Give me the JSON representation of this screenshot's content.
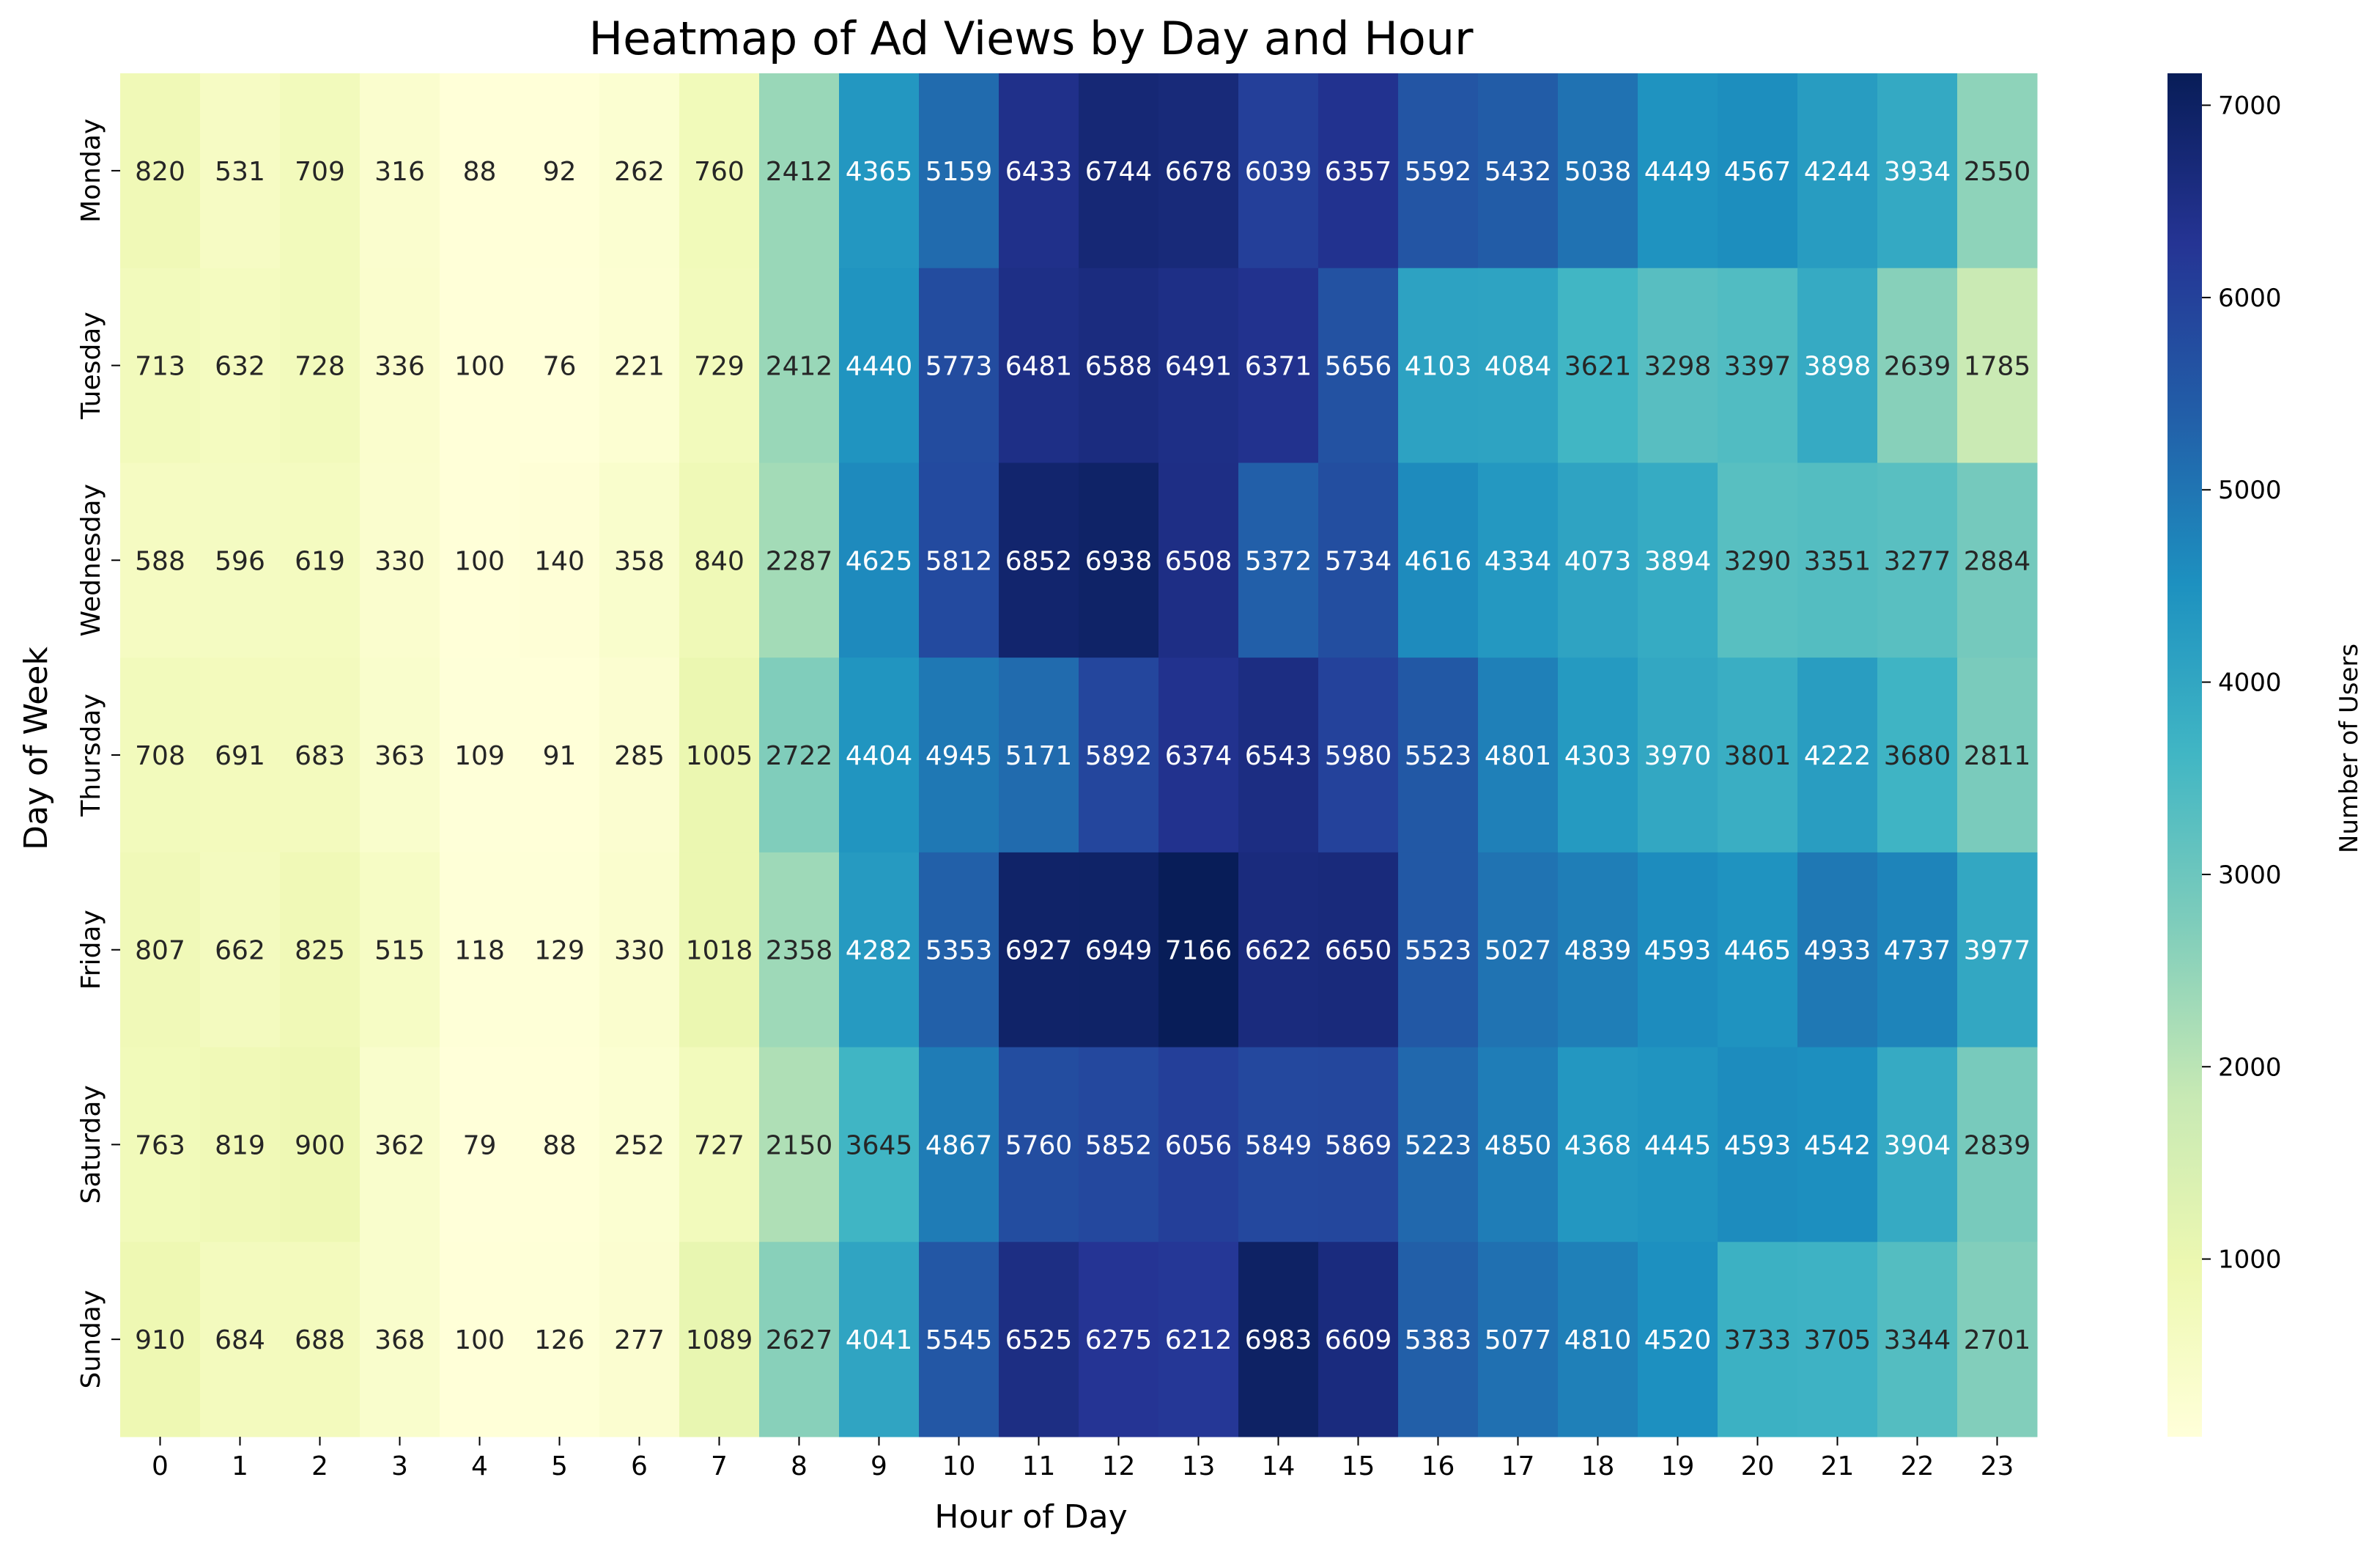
{
  "chart_data": {
    "type": "heatmap",
    "title": "Heatmap of Ad Views by Day and Hour",
    "xlabel": "Hour of Day",
    "ylabel": "Day of Week",
    "x_categories": [
      "0",
      "1",
      "2",
      "3",
      "4",
      "5",
      "6",
      "7",
      "8",
      "9",
      "10",
      "11",
      "12",
      "13",
      "14",
      "15",
      "16",
      "17",
      "18",
      "19",
      "20",
      "21",
      "22",
      "23"
    ],
    "y_categories": [
      "Monday",
      "Tuesday",
      "Wednesday",
      "Thursday",
      "Friday",
      "Saturday",
      "Sunday"
    ],
    "values": [
      [
        820,
        531,
        709,
        316,
        88,
        92,
        262,
        760,
        2412,
        4365,
        5159,
        6433,
        6744,
        6678,
        6039,
        6357,
        5592,
        5432,
        5038,
        4449,
        4567,
        4244,
        3934,
        2550
      ],
      [
        713,
        632,
        728,
        336,
        100,
        76,
        221,
        729,
        2412,
        4440,
        5773,
        6481,
        6588,
        6491,
        6371,
        5656,
        4103,
        4084,
        3621,
        3298,
        3397,
        3898,
        2639,
        1785
      ],
      [
        588,
        596,
        619,
        330,
        100,
        140,
        358,
        840,
        2287,
        4625,
        5812,
        6852,
        6938,
        6508,
        5372,
        5734,
        4616,
        4334,
        4073,
        3894,
        3290,
        3351,
        3277,
        2884
      ],
      [
        708,
        691,
        683,
        363,
        109,
        91,
        285,
        1005,
        2722,
        4404,
        4945,
        5171,
        5892,
        6374,
        6543,
        5980,
        5523,
        4801,
        4303,
        3970,
        3801,
        4222,
        3680,
        2811
      ],
      [
        807,
        662,
        825,
        515,
        118,
        129,
        330,
        1018,
        2358,
        4282,
        5353,
        6927,
        6949,
        7166,
        6622,
        6650,
        5523,
        5027,
        4839,
        4593,
        4465,
        4933,
        4737,
        3977
      ],
      [
        763,
        819,
        900,
        362,
        79,
        88,
        252,
        727,
        2150,
        3645,
        4867,
        5760,
        5852,
        6056,
        5849,
        5869,
        5223,
        4850,
        4368,
        4445,
        4593,
        4542,
        3904,
        2839
      ],
      [
        910,
        684,
        688,
        368,
        100,
        126,
        277,
        1089,
        2627,
        4041,
        5545,
        6525,
        6275,
        6212,
        6983,
        6609,
        5383,
        5077,
        4810,
        4520,
        3733,
        3705,
        3344,
        2701
      ]
    ],
    "colorbar": {
      "label": "Number of Users",
      "min": 76,
      "max": 7166,
      "ticks": [
        1000,
        2000,
        3000,
        4000,
        5000,
        6000,
        7000
      ],
      "colormap": "YlGnBu"
    },
    "colormap_stops": [
      "#ffffd9",
      "#edf8b1",
      "#c7e9b4",
      "#7fcdbb",
      "#41b6c4",
      "#1d91c0",
      "#225ea8",
      "#253494",
      "#081d58"
    ],
    "annotation_colors": {
      "dark_text": "#262626",
      "light_text": "#ffffff"
    }
  }
}
